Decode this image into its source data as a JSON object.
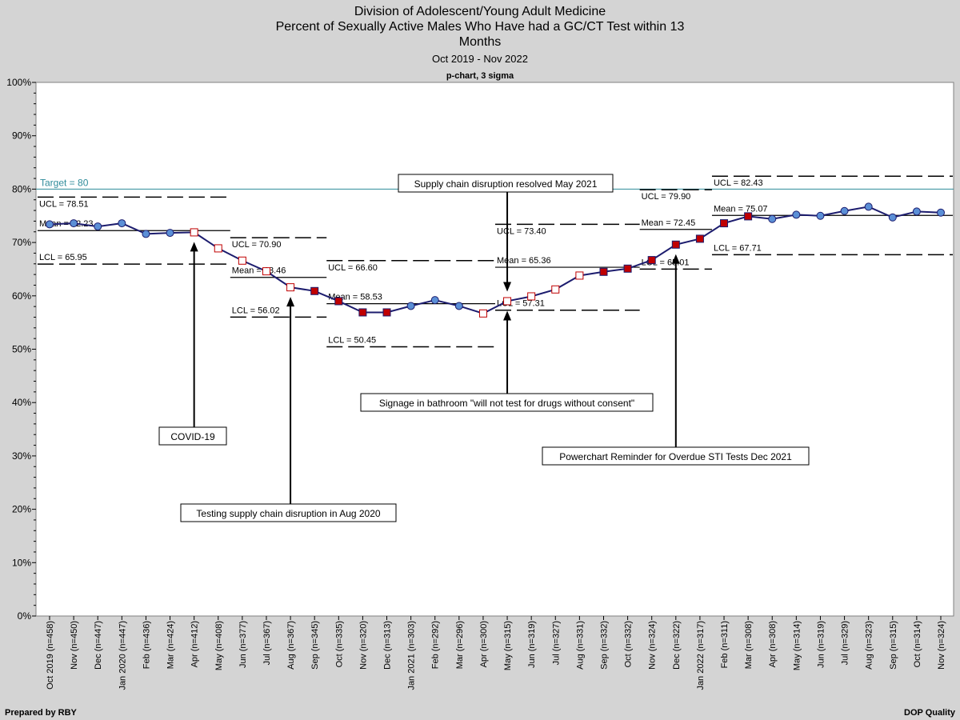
{
  "header": {
    "title_lines": [
      "Division of Adolescent/Young Adult Medicine",
      "Percent of Sexually Active Males Who Have had a GC/CT Test within 13",
      "Months"
    ],
    "date_range": "Oct 2019 - Nov 2022",
    "chart_type_label": "p-chart, 3 sigma"
  },
  "footer": {
    "prepared_by": "Prepared by RBY",
    "source": "DOP Quality"
  },
  "chart_data": {
    "type": "line",
    "ylim": [
      0,
      100
    ],
    "y_ticks": [
      0,
      10,
      20,
      30,
      40,
      50,
      60,
      70,
      80,
      90,
      100
    ],
    "y_tick_labels": [
      "0%",
      "10%",
      "20%",
      "30%",
      "40%",
      "50%",
      "60%",
      "70%",
      "80%",
      "90%",
      "100%"
    ],
    "grid": false,
    "target": {
      "value": 80,
      "label": "Target = 80"
    },
    "categories": [
      "Oct 2019 (n=458)",
      "Nov (n=450)",
      "Dec (n=447)",
      "Jan 2020 (n=447)",
      "Feb (n=436)",
      "Mar (n=424)",
      "Apr (n=412)",
      "May (n=408)",
      "Jun (n=377)",
      "Jul (n=367)",
      "Aug (n=367)",
      "Sep (n=345)",
      "Oct (n=335)",
      "Nov (n=320)",
      "Dec (n=313)",
      "Jan 2021 (n=303)",
      "Feb (n=292)",
      "Mar (n=296)",
      "Apr (n=300)",
      "May (n=315)",
      "Jun (n=319)",
      "Jul (n=327)",
      "Aug (n=331)",
      "Sep (n=332)",
      "Oct (n=332)",
      "Nov (n=324)",
      "Dec (n=322)",
      "Jan 2022 (n=317)",
      "Feb (n=311)",
      "Mar (n=308)",
      "Apr (n=308)",
      "May (n=314)",
      "Jun (n=319)",
      "Jul (n=329)",
      "Aug (n=323)",
      "Sep (n=315)",
      "Oct (n=314)",
      "Nov (n=324)"
    ],
    "values": [
      73.4,
      73.6,
      73.0,
      73.6,
      71.6,
      71.8,
      71.9,
      68.9,
      66.6,
      64.6,
      61.6,
      60.9,
      59.0,
      56.9,
      56.9,
      58.1,
      59.2,
      58.1,
      56.7,
      59.0,
      59.9,
      61.2,
      63.8,
      64.5,
      65.1,
      66.7,
      69.6,
      70.7,
      73.6,
      74.9,
      74.4,
      75.2,
      75.0,
      75.9,
      76.7,
      74.7,
      75.8,
      75.6
    ],
    "marker_types": [
      "normal",
      "normal",
      "normal",
      "normal",
      "normal",
      "normal",
      "special-open",
      "special-open",
      "special-open",
      "special-open",
      "special-open",
      "special-filled",
      "special-filled",
      "special-filled",
      "special-filled",
      "normal",
      "normal",
      "normal",
      "special-open",
      "special-open",
      "special-open",
      "special-open",
      "special-open",
      "special-filled",
      "special-filled",
      "special-filled",
      "special-filled",
      "special-filled",
      "special-filled",
      "special-filled",
      "normal",
      "normal",
      "normal",
      "normal",
      "normal",
      "normal",
      "normal",
      "normal"
    ],
    "phases": [
      {
        "start": 0,
        "end": 7,
        "mean": 72.23,
        "ucl": 78.51,
        "lcl": 65.95,
        "mean_label": "Mean = 72.23",
        "ucl_label": "UCL = 78.51",
        "lcl_label": "LCL = 65.95"
      },
      {
        "start": 8,
        "end": 11,
        "mean": 63.46,
        "ucl": 70.9,
        "lcl": 56.02,
        "mean_label": "Mean = 63.46",
        "ucl_label": "UCL = 70.90",
        "lcl_label": "LCL = 56.02"
      },
      {
        "start": 12,
        "end": 18,
        "mean": 58.53,
        "ucl": 66.6,
        "lcl": 50.45,
        "mean_label": "Mean = 58.53",
        "ucl_label": "UCL = 66.60",
        "lcl_label": "LCL = 50.45"
      },
      {
        "start": 19,
        "end": 24,
        "mean": 65.36,
        "ucl": 73.4,
        "lcl": 57.31,
        "mean_label": "Mean = 65.36",
        "ucl_label": "UCL = 73.40",
        "lcl_label": "LCL = 57.31"
      },
      {
        "start": 25,
        "end": 27,
        "mean": 72.45,
        "ucl": 79.9,
        "lcl": 65.01,
        "mean_label": "Mean = 72.45",
        "ucl_label": "UCL = 79.90",
        "lcl_label": "LCL = 65.01"
      },
      {
        "start": 28,
        "end": 37,
        "mean": 75.07,
        "ucl": 82.43,
        "lcl": 67.71,
        "mean_label": "Mean = 75.07",
        "ucl_label": "UCL = 82.43",
        "lcl_label": "LCL = 67.71"
      }
    ],
    "annotations": [
      {
        "text": "COVID-19",
        "point": 6,
        "direction": "up"
      },
      {
        "text": "Testing supply chain disruption in Aug 2020",
        "point": 10,
        "direction": "up"
      },
      {
        "text": "Supply chain disruption resolved May 2021",
        "point": 19,
        "direction": "down"
      },
      {
        "text": "Signage in bathroom \"will not test for drugs without consent\"",
        "point": 19,
        "direction": "up"
      },
      {
        "text": "Powerchart Reminder for Overdue STI Tests Dec 2021",
        "point": 26,
        "direction": "up"
      }
    ],
    "colors": {
      "line": "#1c1c6e",
      "normal_marker": "#5b8fd6",
      "special_filled_marker": "#c00000",
      "special_open_marker": "#ffffff",
      "special_open_border": "#c00000",
      "target_line": "#2e8b9a"
    }
  }
}
